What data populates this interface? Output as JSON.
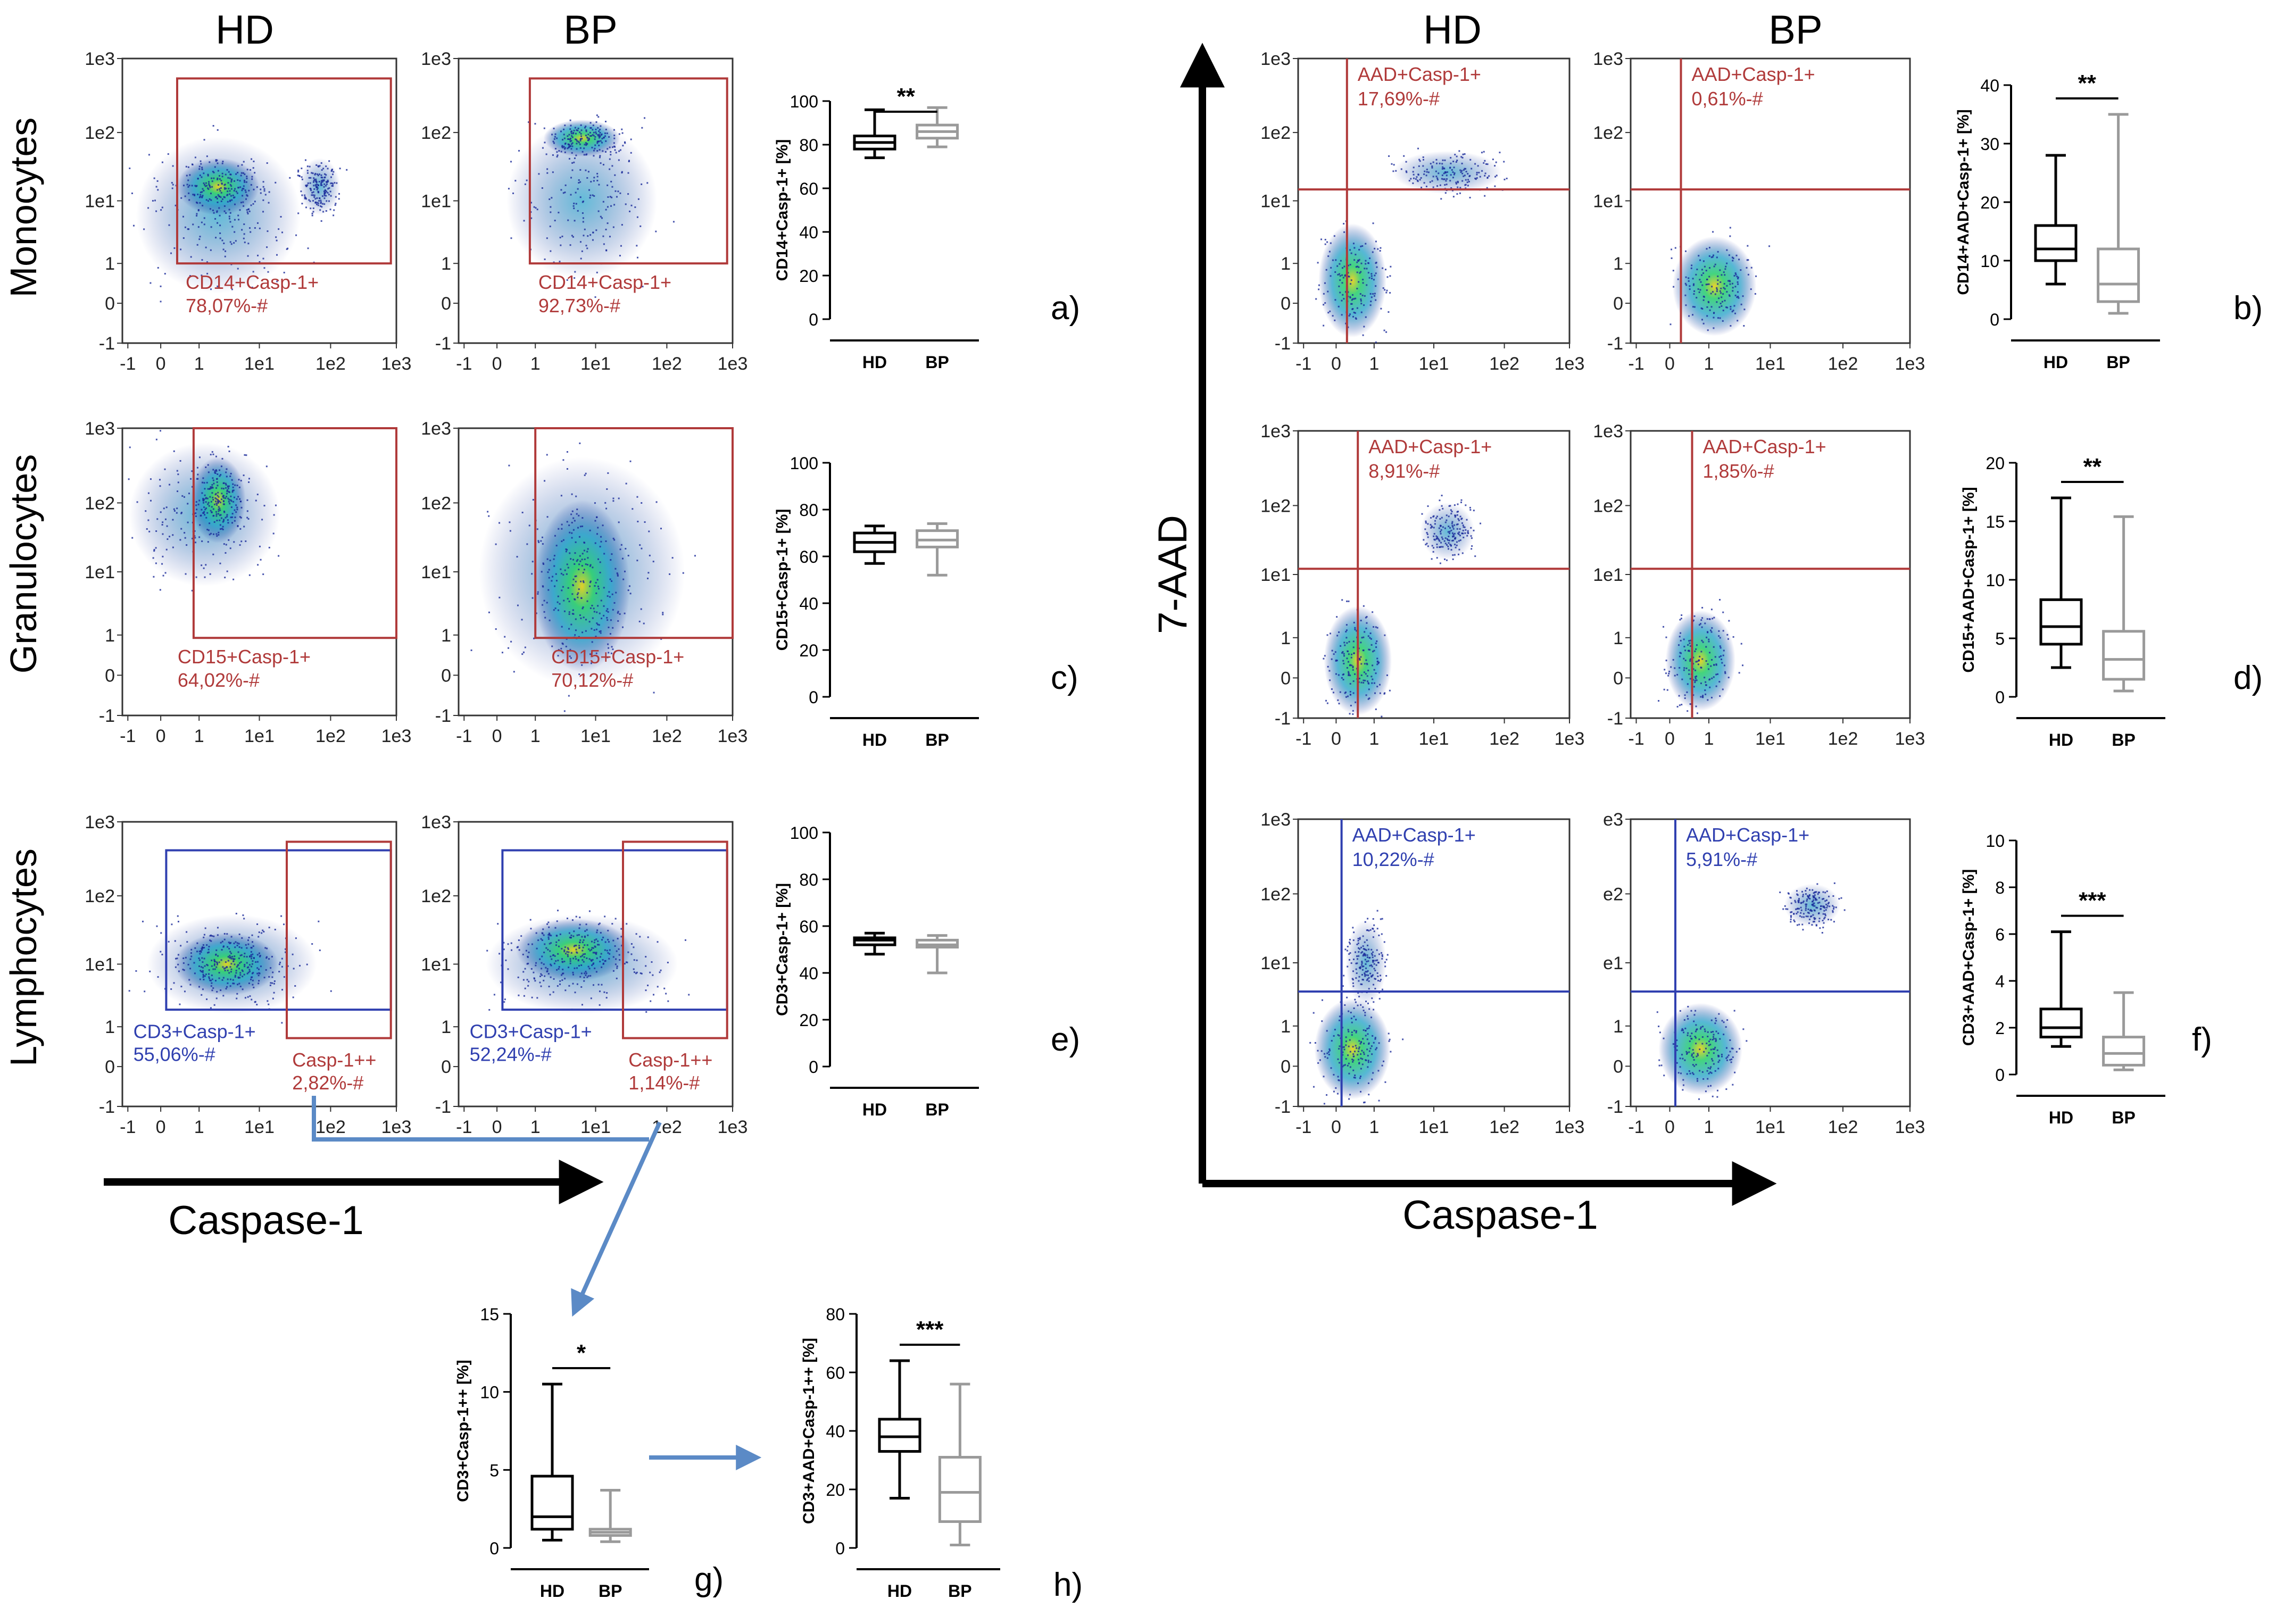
{
  "figure": {
    "col_headers": {
      "left_hd": "HD",
      "left_bp": "BP",
      "right_hd": "HD",
      "right_bp": "BP"
    },
    "row_labels": {
      "monocytes": "Monocytes",
      "granulocytes": "Granulocytes",
      "lymphocytes": "Lymphocytes"
    },
    "axis_labels": {
      "caspase_left": "Caspase-1",
      "caspase_right": "Caspase-1",
      "aad": "7-AAD"
    },
    "panel_letters": [
      "a)",
      "b)",
      "c)",
      "d)",
      "e)",
      "f)",
      "g)",
      "h)"
    ]
  },
  "colors": {
    "hd_box": "#000000",
    "bp_box": "#9a9a9a",
    "gate_red": "#b03a3a",
    "gate_blue": "#3040b0",
    "arrow_blue": "#5b8ac6",
    "density_low": "#1a2a9a",
    "density_mid": "#1fa0c8",
    "density_high": "#2fd070",
    "density_peak": "#e8d020"
  },
  "flow_axis_ticks": [
    "-1",
    "0",
    "1",
    "1e1",
    "1e2",
    "1e3"
  ],
  "flow_axis_ticks_alt": [
    "-1",
    "0",
    "1",
    "e1",
    "e2",
    "e3"
  ],
  "flow_plots": [
    {
      "id": "mono_hd",
      "gate": "rect",
      "color": "red",
      "label1": "CD14+Casp-1+",
      "label2": "78,07%-#"
    },
    {
      "id": "mono_bp",
      "gate": "rect",
      "color": "red",
      "label1": "CD14+Casp-1+",
      "label2": "92,73%-#"
    },
    {
      "id": "gran_hd",
      "gate": "rect",
      "color": "red",
      "label1": "CD15+Casp-1+",
      "label2": "64,02%-#"
    },
    {
      "id": "gran_bp",
      "gate": "rect",
      "color": "red",
      "label1": "CD15+Casp-1+",
      "label2": "70,12%-#"
    },
    {
      "id": "lym_hd",
      "gate": "double",
      "label1": "CD3+Casp-1+",
      "label2": "55,06%-#",
      "label3": "Casp-1++",
      "label4": "2,82%-#"
    },
    {
      "id": "lym_bp",
      "gate": "double",
      "label1": "CD3+Casp-1+",
      "label2": "52,24%-#",
      "label3": "Casp-1++",
      "label4": "1,14%-#"
    },
    {
      "id": "aad_mono_hd",
      "gate": "quad",
      "color": "red",
      "label1": "AAD+Casp-1+",
      "label2": "17,69%-#"
    },
    {
      "id": "aad_mono_bp",
      "gate": "quad",
      "color": "red",
      "label1": "AAD+Casp-1+",
      "label2": "0,61%-#"
    },
    {
      "id": "aad_gran_hd",
      "gate": "quad",
      "color": "red",
      "label1": "AAD+Casp-1+",
      "label2": "8,91%-#"
    },
    {
      "id": "aad_gran_bp",
      "gate": "quad",
      "color": "red",
      "label1": "AAD+Casp-1+",
      "label2": "1,85%-#"
    },
    {
      "id": "aad_lym_hd",
      "gate": "quad",
      "color": "blue",
      "label1": "AAD+Casp-1+",
      "label2": "10,22%-#"
    },
    {
      "id": "aad_lym_bp",
      "gate": "quad",
      "color": "blue",
      "label1": "AAD+Casp-1+",
      "label2": "5,91%-#"
    }
  ],
  "chart_data": [
    {
      "type": "box",
      "panel": "a)",
      "categories": [
        "HD",
        "BP"
      ],
      "ylabel": "CD14+Casp-1+ [%]",
      "ylim": [
        0,
        100
      ],
      "yticks": [
        0,
        20,
        40,
        60,
        80,
        100
      ],
      "significance": "**",
      "series": [
        {
          "name": "HD",
          "min": 74,
          "q1": 78,
          "median": 81,
          "q3": 84,
          "max": 96
        },
        {
          "name": "BP",
          "min": 79,
          "q1": 83,
          "median": 86,
          "q3": 89,
          "max": 97
        }
      ]
    },
    {
      "type": "box",
      "panel": "b)",
      "categories": [
        "HD",
        "BP"
      ],
      "ylabel": "CD14+AAD+Casp-1+ [%]",
      "ylim": [
        0,
        40
      ],
      "yticks": [
        0,
        10,
        20,
        30,
        40
      ],
      "significance": "**",
      "series": [
        {
          "name": "HD",
          "min": 6,
          "q1": 10,
          "median": 12,
          "q3": 16,
          "max": 28
        },
        {
          "name": "BP",
          "min": 1,
          "q1": 3,
          "median": 6,
          "q3": 12,
          "max": 35
        }
      ]
    },
    {
      "type": "box",
      "panel": "c)",
      "categories": [
        "HD",
        "BP"
      ],
      "ylabel": "CD15+Casp-1+ [%]",
      "ylim": [
        0,
        100
      ],
      "yticks": [
        0,
        20,
        40,
        60,
        80,
        100
      ],
      "significance": "",
      "series": [
        {
          "name": "HD",
          "min": 57,
          "q1": 62,
          "median": 66,
          "q3": 70,
          "max": 73
        },
        {
          "name": "BP",
          "min": 52,
          "q1": 64,
          "median": 67,
          "q3": 71,
          "max": 74
        }
      ]
    },
    {
      "type": "box",
      "panel": "d)",
      "categories": [
        "HD",
        "BP"
      ],
      "ylabel": "CD15+AAD+Casp-1+ [%]",
      "ylim": [
        0,
        20
      ],
      "yticks": [
        0,
        5,
        10,
        15,
        20
      ],
      "significance": "**",
      "series": [
        {
          "name": "HD",
          "min": 2.5,
          "q1": 4.5,
          "median": 6,
          "q3": 8.3,
          "max": 17
        },
        {
          "name": "BP",
          "min": 0.5,
          "q1": 1.5,
          "median": 3.2,
          "q3": 5.6,
          "max": 15.4
        }
      ]
    },
    {
      "type": "box",
      "panel": "e)",
      "categories": [
        "HD",
        "BP"
      ],
      "ylabel": "CD3+Casp-1+ [%]",
      "ylim": [
        0,
        100
      ],
      "yticks": [
        0,
        20,
        40,
        60,
        80,
        100
      ],
      "significance": "",
      "series": [
        {
          "name": "HD",
          "min": 48,
          "q1": 52,
          "median": 54,
          "q3": 55,
          "max": 57
        },
        {
          "name": "BP",
          "min": 40,
          "q1": 51,
          "median": 52,
          "q3": 54,
          "max": 56
        }
      ]
    },
    {
      "type": "box",
      "panel": "f)",
      "categories": [
        "HD",
        "BP"
      ],
      "ylabel": "CD3+AAD+Casp-1+ [%]",
      "ylim": [
        0,
        10
      ],
      "yticks": [
        0,
        2,
        4,
        6,
        8,
        10
      ],
      "significance": "***",
      "series": [
        {
          "name": "HD",
          "min": 1.2,
          "q1": 1.6,
          "median": 2,
          "q3": 2.8,
          "max": 6.1
        },
        {
          "name": "BP",
          "min": 0.2,
          "q1": 0.4,
          "median": 0.9,
          "q3": 1.6,
          "max": 3.5
        }
      ]
    },
    {
      "type": "box",
      "panel": "g)",
      "categories": [
        "HD",
        "BP"
      ],
      "ylabel": "CD3+Casp-1++ [%]",
      "ylim": [
        0,
        15
      ],
      "yticks": [
        0,
        5,
        10,
        15
      ],
      "significance": "*",
      "series": [
        {
          "name": "HD",
          "min": 0.5,
          "q1": 1.2,
          "median": 2,
          "q3": 4.6,
          "max": 10.5
        },
        {
          "name": "BP",
          "min": 0.4,
          "q1": 0.8,
          "median": 1,
          "q3": 1.2,
          "max": 3.7
        }
      ]
    },
    {
      "type": "box",
      "panel": "h)",
      "categories": [
        "HD",
        "BP"
      ],
      "ylabel": "CD3+AAD+Casp-1++ [%]",
      "ylim": [
        0,
        80
      ],
      "yticks": [
        0,
        20,
        40,
        60,
        80
      ],
      "significance": "***",
      "series": [
        {
          "name": "HD",
          "min": 17,
          "q1": 33,
          "median": 38,
          "q3": 44,
          "max": 64
        },
        {
          "name": "BP",
          "min": 1,
          "q1": 9,
          "median": 19,
          "q3": 31,
          "max": 56
        }
      ]
    }
  ]
}
